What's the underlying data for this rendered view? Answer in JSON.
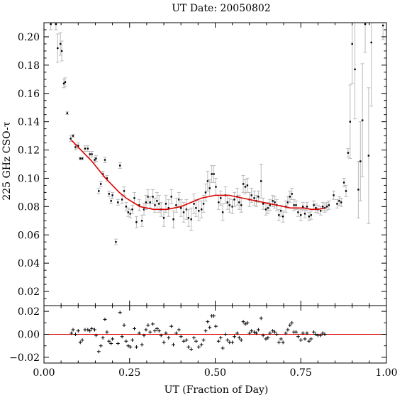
{
  "chart_data": {
    "type": "scatter",
    "title": "UT Date: 20050802",
    "xlabel": "UT (Fraction of Day)",
    "ylabel": "225 GHz CSO-τ",
    "colors": {
      "data": "#000000",
      "errorbar": "#bbbbbb",
      "fit": "#dd0000",
      "frame": "#000000"
    },
    "top_panel": {
      "xlim": [
        0.0,
        1.0
      ],
      "ylim": [
        0.01,
        0.21
      ],
      "yticks": [
        "0.02",
        "0.04",
        "0.06",
        "0.08",
        "0.10",
        "0.12",
        "0.14",
        "0.16",
        "0.18",
        "0.20"
      ],
      "series": [
        {
          "kind": "points_with_errors",
          "points": [
            [
              0.02,
              0.209,
              0.004
            ],
            [
              0.035,
              0.209,
              0.004
            ],
            [
              0.04,
              0.192,
              0.01
            ],
            [
              0.048,
              0.195,
              0.008
            ],
            [
              0.052,
              0.19,
              0.007
            ],
            [
              0.058,
              0.167,
              0.003
            ],
            [
              0.062,
              0.168,
              0.003
            ],
            [
              0.068,
              0.146,
              0.001
            ],
            [
              0.078,
              0.128,
              0.002
            ],
            [
              0.085,
              0.13,
              0.001
            ],
            [
              0.092,
              0.122,
              0.002
            ],
            [
              0.1,
              0.123,
              0.002
            ],
            [
              0.106,
              0.114,
              0.001
            ],
            [
              0.112,
              0.114,
              0.001
            ],
            [
              0.12,
              0.121,
              0.002
            ],
            [
              0.128,
              0.121,
              0.002
            ],
            [
              0.134,
              0.117,
              0.002
            ],
            [
              0.14,
              0.117,
              0.002
            ],
            [
              0.148,
              0.113,
              0.002
            ],
            [
              0.152,
              0.114,
              0.002
            ],
            [
              0.16,
              0.091,
              0.002
            ],
            [
              0.166,
              0.096,
              0.002
            ],
            [
              0.172,
              0.103,
              0.002
            ],
            [
              0.178,
              0.113,
              0.002
            ],
            [
              0.184,
              0.1,
              0.002
            ],
            [
              0.19,
              0.089,
              0.002
            ],
            [
              0.196,
              0.084,
              0.002
            ],
            [
              0.2,
              0.088,
              0.002
            ],
            [
              0.21,
              0.055,
              0.002
            ],
            [
              0.216,
              0.083,
              0.002
            ],
            [
              0.222,
              0.109,
              0.002
            ],
            [
              0.228,
              0.085,
              0.003
            ],
            [
              0.234,
              0.091,
              0.003
            ],
            [
              0.24,
              0.08,
              0.003
            ],
            [
              0.246,
              0.076,
              0.003
            ],
            [
              0.252,
              0.075,
              0.003
            ],
            [
              0.258,
              0.078,
              0.003
            ],
            [
              0.264,
              0.086,
              0.004
            ],
            [
              0.27,
              0.069,
              0.004
            ],
            [
              0.278,
              0.081,
              0.004
            ],
            [
              0.286,
              0.07,
              0.004
            ],
            [
              0.292,
              0.078,
              0.004
            ],
            [
              0.298,
              0.083,
              0.005
            ],
            [
              0.304,
              0.087,
              0.005
            ],
            [
              0.31,
              0.083,
              0.004
            ],
            [
              0.318,
              0.087,
              0.005
            ],
            [
              0.324,
              0.081,
              0.005
            ],
            [
              0.33,
              0.084,
              0.006
            ],
            [
              0.336,
              0.082,
              0.006
            ],
            [
              0.342,
              0.078,
              0.005
            ],
            [
              0.35,
              0.072,
              0.006
            ],
            [
              0.356,
              0.082,
              0.006
            ],
            [
              0.364,
              0.079,
              0.006
            ],
            [
              0.372,
              0.087,
              0.005
            ],
            [
              0.378,
              0.071,
              0.006
            ],
            [
              0.386,
              0.081,
              0.005
            ],
            [
              0.394,
              0.085,
              0.005
            ],
            [
              0.4,
              0.079,
              0.006
            ],
            [
              0.408,
              0.076,
              0.007
            ],
            [
              0.416,
              0.078,
              0.007
            ],
            [
              0.422,
              0.072,
              0.006
            ],
            [
              0.43,
              0.071,
              0.008
            ],
            [
              0.438,
              0.082,
              0.007
            ],
            [
              0.444,
              0.079,
              0.006
            ],
            [
              0.452,
              0.077,
              0.007
            ],
            [
              0.46,
              0.078,
              0.006
            ],
            [
              0.466,
              0.082,
              0.006
            ],
            [
              0.472,
              0.09,
              0.006
            ],
            [
              0.478,
              0.098,
              0.007
            ],
            [
              0.484,
              0.093,
              0.006
            ],
            [
              0.49,
              0.103,
              0.006
            ],
            [
              0.496,
              0.103,
              0.006
            ],
            [
              0.502,
              0.094,
              0.006
            ],
            [
              0.51,
              0.083,
              0.005
            ],
            [
              0.516,
              0.086,
              0.005
            ],
            [
              0.522,
              0.076,
              0.006
            ],
            [
              0.53,
              0.088,
              0.006
            ],
            [
              0.536,
              0.083,
              0.005
            ],
            [
              0.542,
              0.081,
              0.005
            ],
            [
              0.55,
              0.08,
              0.005
            ],
            [
              0.556,
              0.085,
              0.005
            ],
            [
              0.564,
              0.087,
              0.006
            ],
            [
              0.57,
              0.083,
              0.005
            ],
            [
              0.576,
              0.081,
              0.005
            ],
            [
              0.582,
              0.096,
              0.006
            ],
            [
              0.588,
              0.094,
              0.005
            ],
            [
              0.594,
              0.095,
              0.005
            ],
            [
              0.6,
              0.085,
              0.005
            ],
            [
              0.606,
              0.088,
              0.005
            ],
            [
              0.614,
              0.086,
              0.005
            ],
            [
              0.62,
              0.084,
              0.004
            ],
            [
              0.626,
              0.087,
              0.004
            ],
            [
              0.634,
              0.098,
              0.012
            ],
            [
              0.64,
              0.082,
              0.004
            ],
            [
              0.648,
              0.078,
              0.004
            ],
            [
              0.654,
              0.079,
              0.004
            ],
            [
              0.66,
              0.081,
              0.004
            ],
            [
              0.668,
              0.084,
              0.004
            ],
            [
              0.674,
              0.083,
              0.004
            ],
            [
              0.68,
              0.081,
              0.004
            ],
            [
              0.686,
              0.074,
              0.004
            ],
            [
              0.692,
              0.077,
              0.004
            ],
            [
              0.698,
              0.073,
              0.004
            ],
            [
              0.706,
              0.08,
              0.004
            ],
            [
              0.712,
              0.083,
              0.004
            ],
            [
              0.718,
              0.087,
              0.004
            ],
            [
              0.724,
              0.089,
              0.004
            ],
            [
              0.73,
              0.081,
              0.004
            ],
            [
              0.736,
              0.081,
              0.003
            ],
            [
              0.742,
              0.076,
              0.003
            ],
            [
              0.75,
              0.074,
              0.004
            ],
            [
              0.756,
              0.08,
              0.003
            ],
            [
              0.762,
              0.075,
              0.003
            ],
            [
              0.768,
              0.08,
              0.003
            ],
            [
              0.774,
              0.073,
              0.003
            ],
            [
              0.78,
              0.074,
              0.003
            ],
            [
              0.788,
              0.081,
              0.003
            ],
            [
              0.794,
              0.079,
              0.003
            ],
            [
              0.8,
              0.078,
              0.003
            ],
            [
              0.808,
              0.077,
              0.003
            ],
            [
              0.814,
              0.08,
              0.003
            ],
            [
              0.82,
              0.079,
              0.003
            ],
            [
              0.826,
              0.08,
              0.003
            ],
            [
              0.832,
              0.081,
              0.003
            ],
            [
              0.846,
              0.088,
              0.003
            ],
            [
              0.856,
              0.082,
              0.003
            ],
            [
              0.862,
              0.084,
              0.003
            ],
            [
              0.868,
              0.083,
              0.003
            ],
            [
              0.876,
              0.097,
              0.003
            ],
            [
              0.882,
              0.091,
              0.004
            ],
            [
              0.888,
              0.118,
              0.003
            ],
            [
              0.894,
              0.14,
              0.026
            ],
            [
              0.9,
              0.195,
              0.028
            ],
            [
              0.908,
              0.177,
              0.035
            ],
            [
              0.918,
              0.092,
              0.02
            ],
            [
              0.924,
              0.112,
              0.028
            ],
            [
              0.93,
              0.141,
              0.04
            ],
            [
              0.938,
              0.209,
              0.02
            ],
            [
              0.948,
              0.116,
              0.048
            ],
            [
              0.956,
              0.196,
              0.045
            ],
            [
              0.99,
              0.208,
              0.01
            ]
          ]
        },
        {
          "kind": "fit_curve",
          "x": [
            0.08,
            0.1,
            0.12,
            0.14,
            0.16,
            0.18,
            0.2,
            0.22,
            0.24,
            0.26,
            0.28,
            0.3,
            0.32,
            0.34,
            0.36,
            0.38,
            0.4,
            0.42,
            0.44,
            0.46,
            0.48,
            0.5,
            0.52,
            0.54,
            0.56,
            0.58,
            0.6,
            0.62,
            0.64,
            0.66,
            0.68,
            0.7,
            0.72,
            0.74,
            0.76,
            0.78,
            0.8,
            0.82
          ],
          "y": [
            0.127,
            0.122,
            0.117,
            0.112,
            0.106,
            0.1,
            0.095,
            0.09,
            0.086,
            0.083,
            0.08,
            0.079,
            0.078,
            0.078,
            0.078,
            0.079,
            0.08,
            0.082,
            0.084,
            0.086,
            0.087,
            0.088,
            0.088,
            0.088,
            0.087,
            0.086,
            0.085,
            0.084,
            0.083,
            0.082,
            0.081,
            0.08,
            0.079,
            0.079,
            0.079,
            0.078,
            0.078,
            0.079
          ]
        }
      ]
    },
    "bottom_panel": {
      "xlim": [
        0.0,
        1.0
      ],
      "ylim": [
        -0.025,
        0.025
      ],
      "yticks": [
        "−0.02",
        "0.00",
        "0.02"
      ],
      "xticks": [
        "0.00",
        "0.25",
        "0.50",
        "0.75",
        "1.00"
      ],
      "zero_line": 0.0,
      "residuals": {
        "x": [
          0.08,
          0.085,
          0.092,
          0.1,
          0.106,
          0.112,
          0.12,
          0.128,
          0.134,
          0.14,
          0.148,
          0.152,
          0.16,
          0.166,
          0.172,
          0.178,
          0.184,
          0.19,
          0.196,
          0.2,
          0.216,
          0.222,
          0.228,
          0.234,
          0.24,
          0.246,
          0.252,
          0.258,
          0.264,
          0.27,
          0.278,
          0.286,
          0.292,
          0.298,
          0.304,
          0.31,
          0.318,
          0.324,
          0.33,
          0.336,
          0.342,
          0.35,
          0.356,
          0.364,
          0.372,
          0.378,
          0.386,
          0.394,
          0.4,
          0.408,
          0.416,
          0.422,
          0.43,
          0.438,
          0.444,
          0.452,
          0.46,
          0.466,
          0.472,
          0.478,
          0.484,
          0.49,
          0.496,
          0.502,
          0.51,
          0.516,
          0.522,
          0.53,
          0.536,
          0.542,
          0.55,
          0.556,
          0.564,
          0.57,
          0.576,
          0.582,
          0.588,
          0.594,
          0.6,
          0.606,
          0.614,
          0.62,
          0.626,
          0.634,
          0.64,
          0.648,
          0.654,
          0.66,
          0.668,
          0.674,
          0.68,
          0.686,
          0.692,
          0.698,
          0.706,
          0.712,
          0.718,
          0.724,
          0.73,
          0.736,
          0.742,
          0.75,
          0.756,
          0.762,
          0.768,
          0.774,
          0.78,
          0.788,
          0.794,
          0.8,
          0.808,
          0.814,
          0.82
        ],
        "y": [
          0.001,
          0.004,
          0.0,
          0.003,
          -0.007,
          -0.005,
          0.004,
          0.004,
          0.003,
          0.005,
          0.004,
          -0.001,
          -0.015,
          -0.01,
          -0.003,
          0.013,
          0.002,
          -0.006,
          -0.008,
          -0.004,
          -0.008,
          0.019,
          -0.002,
          0.008,
          -0.006,
          -0.01,
          -0.011,
          -0.005,
          0.005,
          -0.011,
          0.001,
          -0.009,
          -0.001,
          0.004,
          0.008,
          0.002,
          0.009,
          0.003,
          0.005,
          0.003,
          -0.001,
          -0.007,
          0.001,
          -0.003,
          0.007,
          -0.009,
          0.001,
          0.004,
          -0.002,
          -0.006,
          -0.005,
          -0.011,
          -0.013,
          -0.003,
          -0.006,
          -0.011,
          -0.009,
          -0.005,
          0.003,
          0.011,
          0.006,
          0.016,
          0.016,
          0.007,
          -0.006,
          -0.003,
          -0.012,
          0.0,
          -0.005,
          -0.007,
          -0.007,
          -0.002,
          0.001,
          -0.003,
          -0.005,
          0.011,
          0.009,
          0.01,
          0.001,
          0.003,
          0.002,
          0.001,
          0.004,
          0.014,
          -0.001,
          -0.004,
          -0.003,
          0.001,
          0.003,
          0.002,
          0.0,
          -0.007,
          -0.004,
          -0.007,
          0.001,
          0.004,
          0.008,
          0.01,
          0.002,
          0.002,
          -0.002,
          -0.005,
          0.001,
          -0.004,
          0.001,
          -0.006,
          -0.004,
          0.002,
          0.0,
          -0.001,
          -0.001,
          0.001,
          0.0
        ]
      }
    }
  }
}
